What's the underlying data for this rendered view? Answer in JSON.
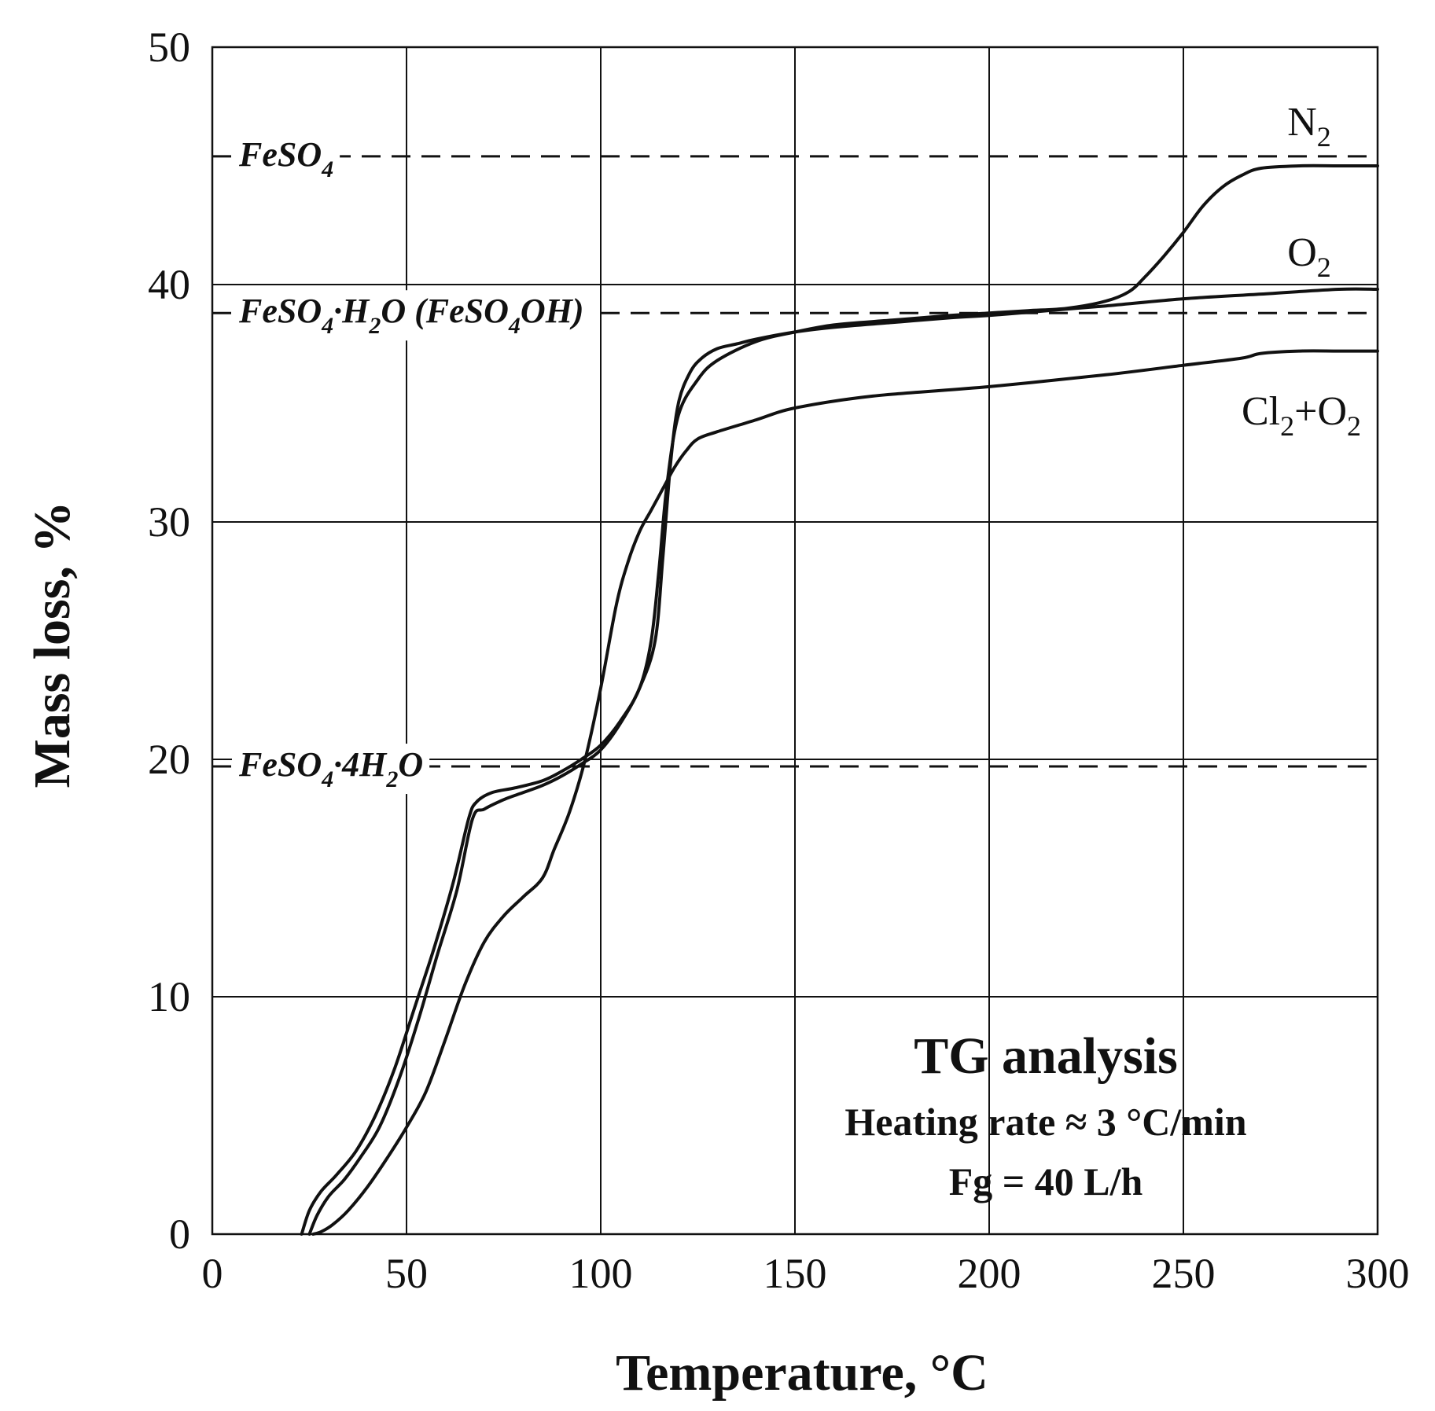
{
  "chart_data": {
    "type": "line",
    "title": "",
    "xlabel": "Temperature, °C",
    "ylabel": "Mass loss, %",
    "xlim": [
      0,
      300
    ],
    "ylim": [
      0,
      50
    ],
    "xticks": [
      0,
      50,
      100,
      150,
      200,
      250,
      300
    ],
    "yticks": [
      0,
      10,
      20,
      30,
      40,
      50
    ],
    "xtick_labels": [
      "0",
      "50",
      "100",
      "150",
      "200",
      "250",
      "300"
    ],
    "ytick_labels": [
      "0",
      "10",
      "20",
      "30",
      "40",
      "50"
    ],
    "grid": true,
    "reference_lines": [
      {
        "y": 45.4,
        "label_main": "FeSO",
        "label_sub": "4",
        "label_rest": ""
      },
      {
        "y": 38.8,
        "label_main": "FeSO",
        "label_sub": "4",
        "label_rest": "·H",
        "label_sub2": "2",
        "label_rest2": "O (FeSO",
        "label_sub3": "4",
        "label_rest3": "OH)"
      },
      {
        "y": 19.7,
        "label_main": "FeSO",
        "label_sub": "4",
        "label_rest": "·4H",
        "label_sub2": "2",
        "label_rest2": "O"
      }
    ],
    "series": [
      {
        "name": "N2",
        "label_main": "N",
        "label_sub": "2",
        "x": [
          23,
          25,
          28,
          32,
          37,
          42,
          47,
          52,
          57,
          62,
          66,
          68,
          72,
          78,
          85,
          90,
          95,
          100,
          105,
          110,
          113,
          115,
          117,
          120,
          125,
          130,
          140,
          150,
          160,
          175,
          190,
          200,
          210,
          220,
          230,
          236,
          240,
          245,
          250,
          255,
          260,
          265,
          270,
          280,
          290,
          300
        ],
        "y": [
          0,
          1,
          1.8,
          2.5,
          3.5,
          5,
          7,
          9.5,
          12,
          14.8,
          17.5,
          18.2,
          18.6,
          18.8,
          19.1,
          19.5,
          20,
          20.6,
          21.6,
          23,
          25,
          28,
          31.5,
          34.5,
          36,
          36.8,
          37.6,
          38,
          38.3,
          38.5,
          38.7,
          38.8,
          38.9,
          39,
          39.3,
          39.7,
          40.3,
          41.2,
          42.2,
          43.3,
          44.1,
          44.6,
          44.9,
          45,
          45,
          45
        ]
      },
      {
        "name": "O2",
        "label_main": "O",
        "label_sub": "2",
        "x": [
          25,
          27,
          30,
          34,
          38,
          43,
          48,
          53,
          58,
          63,
          67,
          70,
          75,
          80,
          85,
          90,
          95,
          100,
          105,
          110,
          114,
          116,
          118,
          120,
          123,
          126,
          130,
          135,
          140,
          150,
          160,
          175,
          190,
          200,
          215,
          230,
          250,
          270,
          290,
          300
        ],
        "y": [
          0,
          0.8,
          1.6,
          2.3,
          3.2,
          4.5,
          6.5,
          9,
          11.8,
          14.5,
          17.5,
          17.9,
          18.3,
          18.6,
          18.9,
          19.3,
          19.8,
          20.4,
          21.5,
          23,
          25,
          28.5,
          32.5,
          35,
          36.3,
          36.9,
          37.3,
          37.5,
          37.7,
          38,
          38.2,
          38.4,
          38.6,
          38.7,
          38.9,
          39.1,
          39.4,
          39.6,
          39.8,
          39.8
        ]
      },
      {
        "name": "Cl2+O2",
        "label_main": "Cl",
        "label_sub": "2",
        "label_rest": "+O",
        "label_sub2": "2",
        "x": [
          26,
          28,
          31,
          35,
          40,
          45,
          50,
          55,
          60,
          65,
          70,
          75,
          80,
          85,
          88,
          92,
          96,
          100,
          104,
          107,
          110,
          113,
          116,
          119,
          122,
          125,
          130,
          140,
          150,
          170,
          200,
          230,
          250,
          265,
          270,
          280,
          290,
          300
        ],
        "y": [
          0,
          0.1,
          0.4,
          1,
          2,
          3.2,
          4.5,
          6,
          8.2,
          10.5,
          12.3,
          13.4,
          14.2,
          15,
          16.2,
          17.8,
          20,
          23,
          26.5,
          28.3,
          29.6,
          30.5,
          31.4,
          32.3,
          33,
          33.5,
          33.8,
          34.3,
          34.8,
          35.3,
          35.7,
          36.2,
          36.6,
          36.9,
          37.1,
          37.2,
          37.2,
          37.2
        ]
      }
    ],
    "annotation": {
      "title": "TG analysis",
      "line1": "Heating rate ≈ 3 °C/min",
      "line2": "Fg = 40 L/h"
    }
  }
}
